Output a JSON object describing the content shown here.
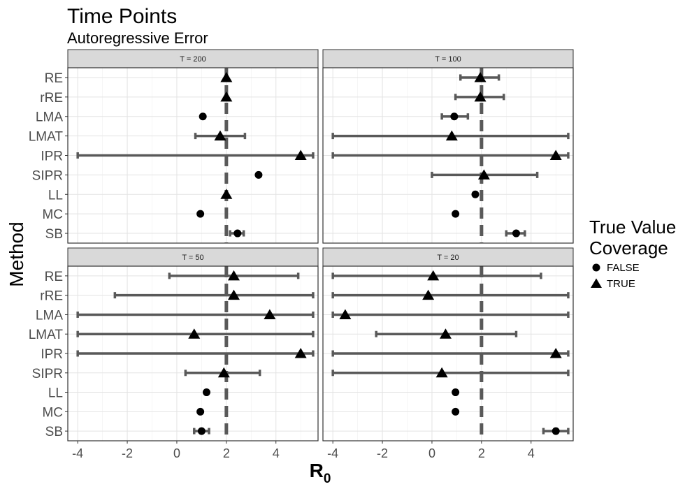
{
  "chart_data": {
    "type": "dot-errorbar",
    "title": "Time Points",
    "subtitle": "Autoregressive Error",
    "xlabel_base": "R",
    "xlabel_sub": "0",
    "ylabel": "Method",
    "xlim": [
      -4.4,
      5.7
    ],
    "x_ticks": [
      -4,
      -2,
      0,
      2,
      4
    ],
    "reference_line": 2,
    "grid": true,
    "methods": [
      "RE",
      "rRE",
      "LMA",
      "LMAT",
      "IPR",
      "SIPR",
      "LL",
      "MC",
      "SB"
    ],
    "legend": {
      "title_line1": "True Value",
      "title_line2": "Coverage",
      "placement": "right",
      "entries": [
        {
          "label": "FALSE",
          "shape": "circle"
        },
        {
          "label": "TRUE",
          "shape": "triangle"
        }
      ]
    },
    "panels": [
      {
        "strip": "T = 200",
        "rows": [
          {
            "method": "RE",
            "est": 2.0,
            "lo": null,
            "hi": null,
            "covered": true
          },
          {
            "method": "rRE",
            "est": 2.0,
            "lo": null,
            "hi": null,
            "covered": true
          },
          {
            "method": "LMA",
            "est": 1.05,
            "lo": null,
            "hi": null,
            "covered": false
          },
          {
            "method": "LMAT",
            "est": 1.75,
            "lo": 0.75,
            "hi": 2.75,
            "covered": true
          },
          {
            "method": "IPR",
            "est": 5.0,
            "lo": -4.0,
            "hi": 5.5,
            "covered": true
          },
          {
            "method": "SIPR",
            "est": 3.3,
            "lo": null,
            "hi": null,
            "covered": false
          },
          {
            "method": "LL",
            "est": 2.0,
            "lo": null,
            "hi": null,
            "covered": true
          },
          {
            "method": "MC",
            "est": 0.95,
            "lo": null,
            "hi": null,
            "covered": false
          },
          {
            "method": "SB",
            "est": 2.45,
            "lo": 2.15,
            "hi": 2.7,
            "covered": false
          }
        ]
      },
      {
        "strip": "T = 100",
        "rows": [
          {
            "method": "RE",
            "est": 1.95,
            "lo": 1.15,
            "hi": 2.7,
            "covered": true
          },
          {
            "method": "rRE",
            "est": 1.95,
            "lo": 0.95,
            "hi": 2.9,
            "covered": true
          },
          {
            "method": "LMA",
            "est": 0.9,
            "lo": 0.4,
            "hi": 1.45,
            "covered": false
          },
          {
            "method": "LMAT",
            "est": 0.8,
            "lo": -4.0,
            "hi": 5.5,
            "covered": true
          },
          {
            "method": "IPR",
            "est": 5.0,
            "lo": -4.0,
            "hi": 5.5,
            "covered": true
          },
          {
            "method": "SIPR",
            "est": 2.1,
            "lo": 0.0,
            "hi": 4.25,
            "covered": true
          },
          {
            "method": "LL",
            "est": 1.75,
            "lo": null,
            "hi": null,
            "covered": false
          },
          {
            "method": "MC",
            "est": 0.95,
            "lo": null,
            "hi": null,
            "covered": false
          },
          {
            "method": "SB",
            "est": 3.4,
            "lo": 3.0,
            "hi": 3.75,
            "covered": false
          }
        ]
      },
      {
        "strip": "T = 50",
        "rows": [
          {
            "method": "RE",
            "est": 2.3,
            "lo": -0.3,
            "hi": 4.9,
            "covered": true
          },
          {
            "method": "rRE",
            "est": 2.3,
            "lo": -2.5,
            "hi": 5.5,
            "covered": true
          },
          {
            "method": "LMA",
            "est": 3.75,
            "lo": -4.0,
            "hi": 5.5,
            "covered": true
          },
          {
            "method": "LMAT",
            "est": 0.7,
            "lo": -4.0,
            "hi": 5.5,
            "covered": true
          },
          {
            "method": "IPR",
            "est": 5.0,
            "lo": -4.0,
            "hi": 5.5,
            "covered": true
          },
          {
            "method": "SIPR",
            "est": 1.9,
            "lo": 0.35,
            "hi": 3.35,
            "covered": true
          },
          {
            "method": "LL",
            "est": 1.2,
            "lo": null,
            "hi": null,
            "covered": false
          },
          {
            "method": "MC",
            "est": 0.95,
            "lo": null,
            "hi": null,
            "covered": false
          },
          {
            "method": "SB",
            "est": 1.0,
            "lo": 0.7,
            "hi": 1.3,
            "covered": false
          }
        ]
      },
      {
        "strip": "T = 20",
        "rows": [
          {
            "method": "RE",
            "est": 0.05,
            "lo": -4.0,
            "hi": 4.4,
            "covered": true
          },
          {
            "method": "rRE",
            "est": -0.15,
            "lo": -4.0,
            "hi": 5.5,
            "covered": true
          },
          {
            "method": "LMA",
            "est": -3.5,
            "lo": -4.0,
            "hi": 5.5,
            "covered": true
          },
          {
            "method": "LMAT",
            "est": 0.55,
            "lo": -2.25,
            "hi": 3.4,
            "covered": true
          },
          {
            "method": "IPR",
            "est": 5.0,
            "lo": -4.0,
            "hi": 5.5,
            "covered": true
          },
          {
            "method": "SIPR",
            "est": 0.4,
            "lo": -4.0,
            "hi": 5.5,
            "covered": true
          },
          {
            "method": "LL",
            "est": 0.95,
            "lo": null,
            "hi": null,
            "covered": false
          },
          {
            "method": "MC",
            "est": 0.95,
            "lo": null,
            "hi": null,
            "covered": false
          },
          {
            "method": "SB",
            "est": 5.0,
            "lo": 4.5,
            "hi": 5.5,
            "covered": false
          }
        ]
      }
    ]
  }
}
